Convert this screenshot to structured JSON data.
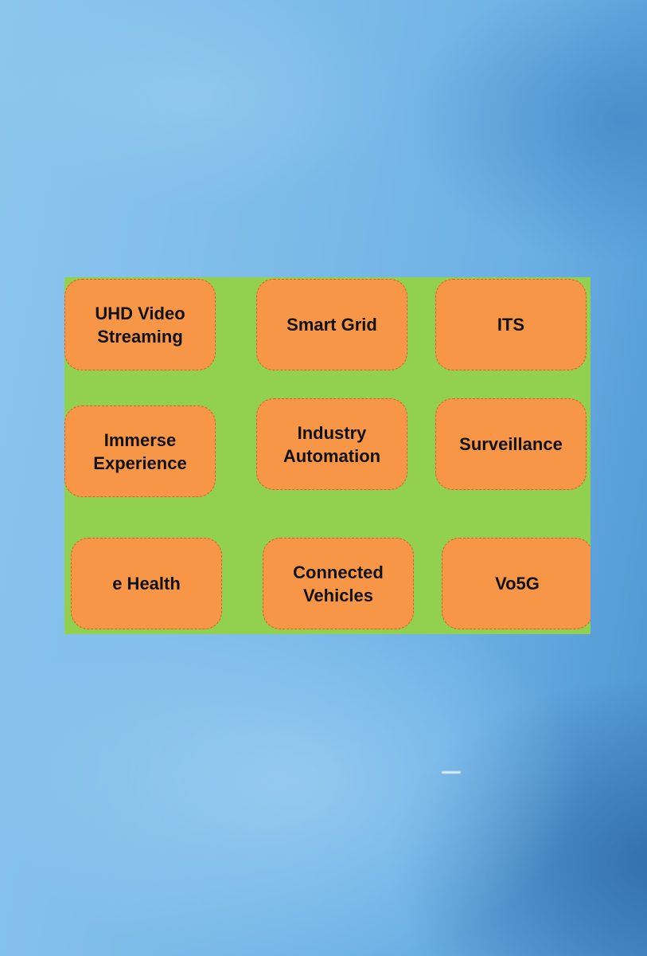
{
  "diagram": {
    "colors": {
      "panel_background": "#92d050",
      "tile_fill": "#f79646",
      "tile_text": "#111111"
    },
    "tiles": [
      {
        "label": "UHD Video\nStreaming"
      },
      {
        "label": "Smart Grid"
      },
      {
        "label": "ITS"
      },
      {
        "label": "Immerse\nExperience"
      },
      {
        "label": "Industry\nAutomation"
      },
      {
        "label": "Surveillance"
      },
      {
        "label": "e Health"
      },
      {
        "label": "Connected\nVehicles"
      },
      {
        "label": "Vo5G"
      }
    ]
  }
}
